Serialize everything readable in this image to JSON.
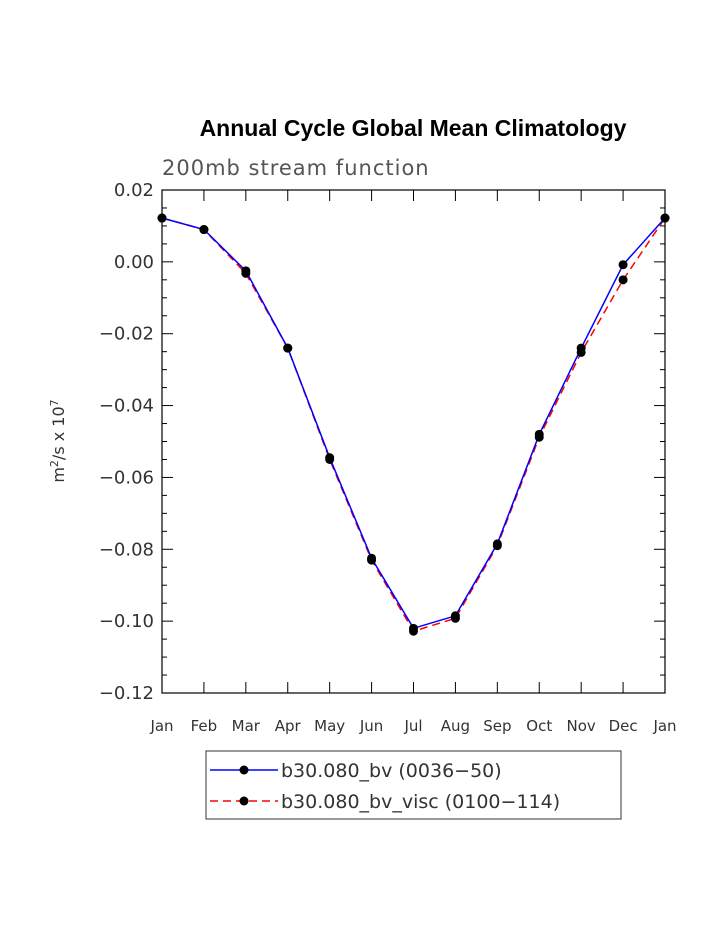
{
  "chart_data": {
    "type": "line",
    "title": "Annual Cycle Global Mean Climatology",
    "subtitle": "200mb stream function",
    "ylabel_base": "m",
    "ylabel_sup1": "2",
    "ylabel_mid": "/s x 10",
    "ylabel_sup2": "7",
    "categories": [
      "Jan",
      "Feb",
      "Mar",
      "Apr",
      "May",
      "Jun",
      "Jul",
      "Aug",
      "Sep",
      "Oct",
      "Nov",
      "Dec",
      "Jan"
    ],
    "ylim": [
      -0.12,
      0.02
    ],
    "yticks": [
      "0.02",
      "0.00",
      "−0.02",
      "−0.04",
      "−0.06",
      "−0.08",
      "−0.10",
      "−0.12"
    ],
    "ytick_values": [
      0.02,
      0.0,
      -0.02,
      -0.04,
      -0.06,
      -0.08,
      -0.1,
      -0.12
    ],
    "grid": false,
    "legend_position": "bottom",
    "series": [
      {
        "name": "b30.080_bv (0036−50)",
        "color": "#0000ff",
        "dash": "solid",
        "values": [
          0.0122,
          0.009,
          -0.0025,
          -0.024,
          -0.0545,
          -0.0825,
          -0.102,
          -0.0985,
          -0.0785,
          -0.048,
          -0.024,
          -0.0008,
          0.0122
        ]
      },
      {
        "name": "b30.080_bv_visc (0100−114)",
        "color": "#ff0000",
        "dash": "dashed",
        "values": [
          0.0122,
          0.009,
          -0.0032,
          -0.024,
          -0.055,
          -0.083,
          -0.1028,
          -0.0992,
          -0.079,
          -0.0488,
          -0.0252,
          -0.005,
          0.0122
        ]
      }
    ]
  }
}
